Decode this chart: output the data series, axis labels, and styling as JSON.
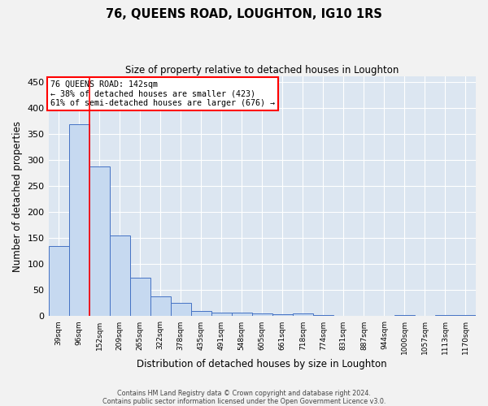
{
  "title": "76, QUEENS ROAD, LOUGHTON, IG10 1RS",
  "subtitle": "Size of property relative to detached houses in Loughton",
  "xlabel": "Distribution of detached houses by size in Loughton",
  "ylabel": "Number of detached properties",
  "bar_labels": [
    "39sqm",
    "96sqm",
    "152sqm",
    "209sqm",
    "265sqm",
    "322sqm",
    "378sqm",
    "435sqm",
    "491sqm",
    "548sqm",
    "605sqm",
    "661sqm",
    "718sqm",
    "774sqm",
    "831sqm",
    "887sqm",
    "944sqm",
    "1000sqm",
    "1057sqm",
    "1113sqm",
    "1170sqm"
  ],
  "bar_values": [
    135,
    368,
    288,
    155,
    74,
    38,
    25,
    10,
    7,
    7,
    5,
    4,
    5,
    2,
    0,
    0,
    0,
    3,
    0,
    3,
    3
  ],
  "bar_color": "#c6d9f0",
  "bar_edge_color": "#4472c4",
  "plot_bg_color": "#dce6f1",
  "fig_bg_color": "#f2f2f2",
  "grid_color": "#ffffff",
  "annotation_text_line1": "76 QUEENS ROAD: 142sqm",
  "annotation_text_line2": "← 38% of detached houses are smaller (423)",
  "annotation_text_line3": "61% of semi-detached houses are larger (676) →",
  "footer_line1": "Contains HM Land Registry data © Crown copyright and database right 2024.",
  "footer_line2": "Contains public sector information licensed under the Open Government Licence v3.0.",
  "red_line_x": 1.5,
  "ylim": [
    0,
    460
  ],
  "yticks": [
    0,
    50,
    100,
    150,
    200,
    250,
    300,
    350,
    400,
    450
  ]
}
